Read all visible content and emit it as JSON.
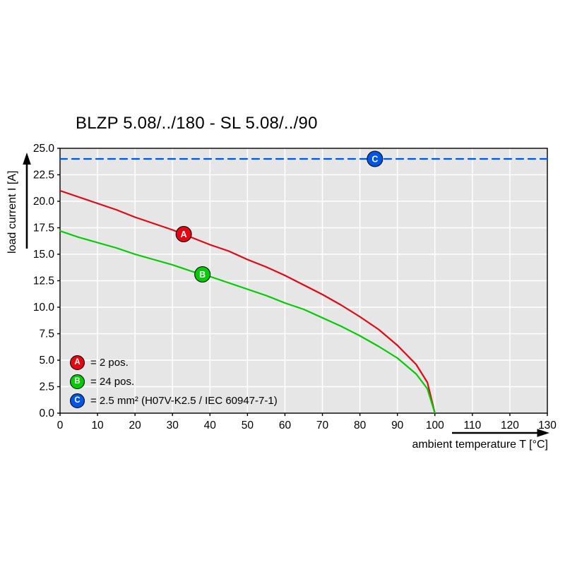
{
  "chart_data": {
    "type": "line",
    "title": "BLZP 5.08/../180 - SL 5.08/../90",
    "xlabel": "ambient temperature T [°C]",
    "ylabel": "load current I [A]",
    "xlim": [
      0,
      130
    ],
    "ylim": [
      0,
      25
    ],
    "x_ticks": [
      "0",
      "10",
      "20",
      "30",
      "40",
      "50",
      "60",
      "70",
      "80",
      "90",
      "100",
      "110",
      "120",
      "130"
    ],
    "y_ticks": [
      "0.0",
      "2.5",
      "5.0",
      "7.5",
      "10.0",
      "12.5",
      "15.0",
      "17.5",
      "20.0",
      "22.5",
      "25.0"
    ],
    "grid": true,
    "plot_background": "#e6e6e6",
    "grid_color": "#ffffff",
    "legend_position": "bottom-left-inside",
    "series": [
      {
        "name": "A",
        "legend_label": "= 2 pos.",
        "color": "#e30613",
        "line_style": "solid",
        "x": [
          0,
          5,
          10,
          15,
          20,
          25,
          30,
          35,
          40,
          45,
          50,
          55,
          60,
          65,
          70,
          75,
          80,
          85,
          90,
          95,
          98,
          100
        ],
        "y": [
          21.0,
          20.4,
          19.8,
          19.2,
          18.5,
          17.9,
          17.3,
          16.6,
          15.9,
          15.3,
          14.5,
          13.8,
          13.0,
          12.1,
          11.2,
          10.2,
          9.1,
          7.9,
          6.4,
          4.6,
          2.9,
          0.0
        ],
        "marker": {
          "label": "A",
          "x": 33,
          "y": 16.9
        }
      },
      {
        "name": "B",
        "legend_label": "= 24 pos.",
        "color": "#00cc00",
        "line_style": "solid",
        "x": [
          0,
          5,
          10,
          15,
          20,
          25,
          30,
          35,
          40,
          45,
          50,
          55,
          60,
          65,
          70,
          75,
          80,
          85,
          90,
          95,
          98,
          100
        ],
        "y": [
          17.2,
          16.6,
          16.1,
          15.6,
          15.0,
          14.5,
          14.0,
          13.4,
          12.9,
          12.3,
          11.7,
          11.1,
          10.4,
          9.8,
          9.0,
          8.2,
          7.3,
          6.3,
          5.2,
          3.7,
          2.3,
          0.0
        ],
        "marker": {
          "label": "B",
          "x": 38,
          "y": 13.1
        }
      },
      {
        "name": "C",
        "legend_label": "= 2.5 mm² (H07V-K2.5 / IEC 60947-7-1)",
        "color": "#0055e6",
        "line_style": "dashed",
        "x": [
          0,
          130
        ],
        "y": [
          24,
          24
        ],
        "marker": {
          "label": "C",
          "x": 84,
          "y": 24
        }
      }
    ]
  }
}
